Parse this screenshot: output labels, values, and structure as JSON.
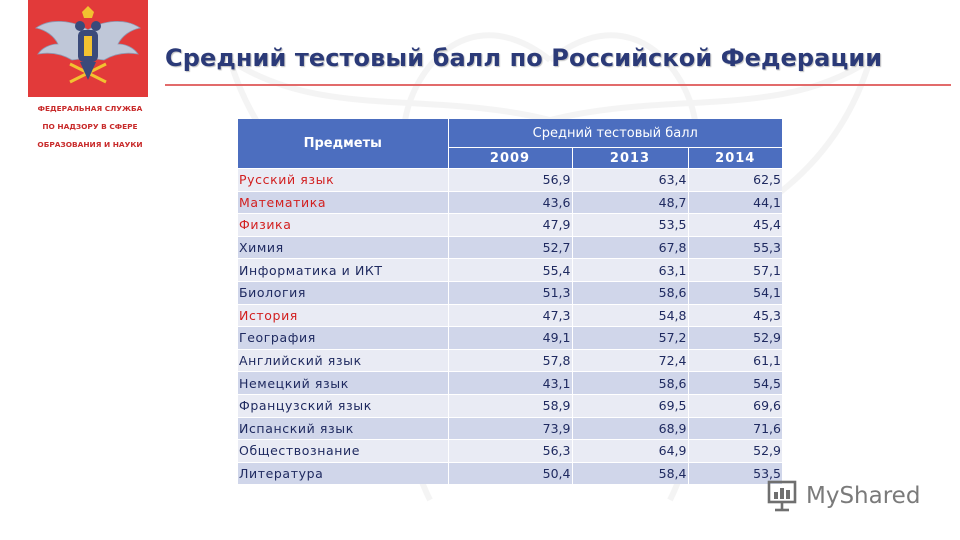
{
  "colors": {
    "title": "#2b3a78",
    "accent_red": "#e23a3a",
    "table_header": "#4c6ebf",
    "row_light": "#e9ebf4",
    "row_dark": "#d0d6ea",
    "highlight_text": "#d21f1f"
  },
  "header": {
    "logo_icon": "double-headed-eagle-emblem-icon",
    "agency_lines": [
      "ФЕДЕРАЛЬНАЯ СЛУЖБА",
      "ПО НАДЗОРУ В СФЕРЕ",
      "ОБРАЗОВАНИЯ И НАУКИ"
    ],
    "title": "Средний тестовый балл по Российской Федерации"
  },
  "table": {
    "subject_header": "Предметы",
    "group_header": "Средний тестовый балл",
    "years": [
      "2009",
      "2013",
      "2014"
    ],
    "rows": [
      {
        "subject": "Русский язык",
        "v2009": "56,9",
        "v2013": "63,4",
        "v2014": "62,5",
        "highlight": true
      },
      {
        "subject": "Математика",
        "v2009": "43,6",
        "v2013": "48,7",
        "v2014": "44,1",
        "highlight": true
      },
      {
        "subject": "Физика",
        "v2009": "47,9",
        "v2013": "53,5",
        "v2014": "45,4",
        "highlight": true
      },
      {
        "subject": "Химия",
        "v2009": "52,7",
        "v2013": "67,8",
        "v2014": "55,3",
        "highlight": false
      },
      {
        "subject": "Информатика и ИКТ",
        "v2009": "55,4",
        "v2013": "63,1",
        "v2014": "57,1",
        "highlight": false
      },
      {
        "subject": "Биология",
        "v2009": "51,3",
        "v2013": "58,6",
        "v2014": "54,1",
        "highlight": false
      },
      {
        "subject": "История",
        "v2009": "47,3",
        "v2013": "54,8",
        "v2014": "45,3",
        "highlight": true
      },
      {
        "subject": "География",
        "v2009": "49,1",
        "v2013": "57,2",
        "v2014": "52,9",
        "highlight": false
      },
      {
        "subject": "Английский язык",
        "v2009": "57,8",
        "v2013": "72,4",
        "v2014": "61,1",
        "highlight": false
      },
      {
        "subject": "Немецкий язык",
        "v2009": "43,1",
        "v2013": "58,6",
        "v2014": "54,5",
        "highlight": false
      },
      {
        "subject": "Французский язык",
        "v2009": "58,9",
        "v2013": "69,5",
        "v2014": "69,6",
        "highlight": false
      },
      {
        "subject": "Испанский язык",
        "v2009": "73,9",
        "v2013": "68,9",
        "v2014": "71,6",
        "highlight": false
      },
      {
        "subject": "Обществознание",
        "v2009": "56,3",
        "v2013": "64,9",
        "v2014": "52,9",
        "highlight": false
      },
      {
        "subject": "Литература",
        "v2009": "50,4",
        "v2013": "58,4",
        "v2014": "53,5",
        "highlight": false
      }
    ]
  },
  "watermark": {
    "icon": "myshared-presentation-icon",
    "text": "MyShared"
  }
}
